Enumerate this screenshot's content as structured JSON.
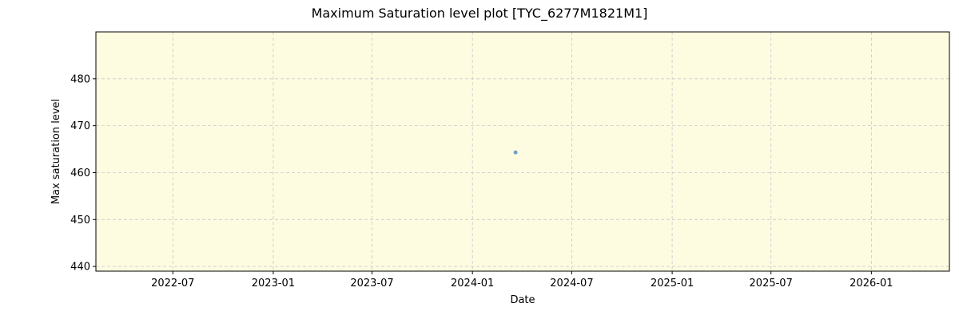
{
  "chart_data": {
    "type": "scatter",
    "title": "Maximum Saturation level plot [TYC_6277M1821M1]",
    "xlabel": "Date",
    "ylabel": "Max saturation level",
    "x_ticks": [
      "2022-07",
      "2023-01",
      "2023-07",
      "2024-01",
      "2024-07",
      "2025-01",
      "2025-07",
      "2026-01"
    ],
    "y_ticks": [
      440,
      450,
      460,
      470,
      480
    ],
    "xlim": [
      "2022-02-10",
      "2026-05-24"
    ],
    "ylim": [
      439,
      490
    ],
    "grid": true,
    "series": [
      {
        "x": [
          "2024-03-20"
        ],
        "y": [
          464.3
        ]
      }
    ],
    "colors": {
      "plot_background": "#fdfce1",
      "point": "#6fa3c5",
      "grid": "#c8c8c8"
    }
  }
}
